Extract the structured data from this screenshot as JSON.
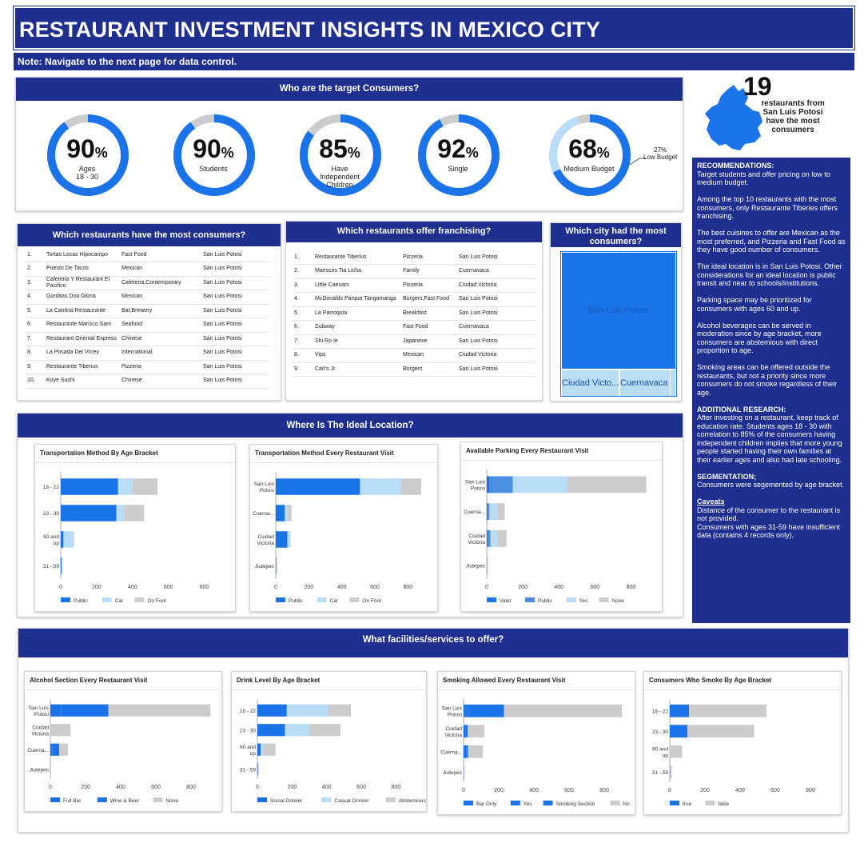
{
  "header": {
    "title": "RESTAURANT INVESTMENT INSIGHTS IN MEXICO CITY",
    "note": "Note: Navigate to  the next page for data control."
  },
  "consumers": {
    "title": "Who are the target Consumers?",
    "donuts": [
      {
        "pct": "90",
        "label1": "Ages",
        "label2": "18 - 30",
        "label3": "",
        "value": 0.9
      },
      {
        "pct": "90",
        "label1": "Students",
        "label2": "",
        "label3": "",
        "value": 0.9
      },
      {
        "pct": "85",
        "label1": "Have",
        "label2": "Independent",
        "label3": "Children",
        "value": 0.85
      },
      {
        "pct": "92",
        "label1": "Single",
        "label2": "",
        "label3": "",
        "value": 0.92
      },
      {
        "pct": "68",
        "label1": "Medium Budget",
        "label2": "",
        "label3": "",
        "value": 0.68,
        "low": 0.27
      }
    ],
    "pct_symbol": "%",
    "low_budget_pct": "27%",
    "low_budget_label": "Low Budget"
  },
  "state_callout": {
    "number": "19",
    "line1": "restaurants from",
    "line2": "San Luis Potosi",
    "line3": "have the most",
    "line4": "consumers"
  },
  "most_consumers": {
    "title": "Which restaurants have the most consumers?",
    "rows": [
      [
        "1.",
        "Tortas Locas Hipocampo",
        "Fast Food",
        "San Luis Potosi"
      ],
      [
        "2.",
        "Puesto De Tacos",
        "Mexican",
        "San Luis Potosi"
      ],
      [
        "3.",
        "Cafeteria Y Restaurant El Pacifico",
        "Cafeteria,Contemporary",
        "San Luis Potosi"
      ],
      [
        "4.",
        "Gorditas Doa Gloria",
        "Mexican",
        "San Luis Potosi"
      ],
      [
        "5.",
        "La Cantina Restaurante",
        "Bar,Brewery",
        "San Luis Potosi"
      ],
      [
        "6.",
        "Restaurante Marisco Sam",
        "Seafood",
        "San Luis Potosi"
      ],
      [
        "7.",
        "Restaurant Oriental Express",
        "Chinese",
        "San Luis Potosi"
      ],
      [
        "8.",
        "La Posada Del Virrey",
        "International",
        "San Luis Potosi"
      ],
      [
        "9.",
        "Restaurante Tiberius",
        "Pizzeria",
        "San Luis Potosi"
      ],
      [
        "10.",
        "Koye Sushi",
        "Chinese",
        "San Luis Potosi"
      ]
    ]
  },
  "franchising": {
    "title": "Which restaurants offer franchising?",
    "rows": [
      [
        "1.",
        "Restaurante Tiberius",
        "Pizzeria",
        "San Luis Potosi"
      ],
      [
        "2.",
        "Mariscos Tia Licha",
        "Family",
        "Cuernavaca"
      ],
      [
        "3.",
        "Little Caesars",
        "Pizzeria",
        "Ciudad Victoria"
      ],
      [
        "4.",
        "McDonalds Parque Tangamanga",
        "Burgers,Fast Food",
        "San Luis Potosi"
      ],
      [
        "5.",
        "La Parroquia",
        "Breakfast",
        "San Luis Potosi"
      ],
      [
        "6.",
        "Subway",
        "Fast Food",
        "Cuernavaca"
      ],
      [
        "7.",
        "Shi Ro Ie",
        "Japanese",
        "San Luis Potosi"
      ],
      [
        "8.",
        "Vips",
        "Mexican",
        "Ciudad Victoria"
      ],
      [
        "9.",
        "Carl's Jr",
        "Burgers",
        "San Luis Potosi"
      ]
    ]
  },
  "city_treemap": {
    "title": "Which city had the most consumers?",
    "cells": [
      "San Luis Potosi",
      "Ciudad Victo...",
      "Cuernavaca ..."
    ]
  },
  "location": {
    "title": "Where Is The Ideal Location?"
  },
  "facilities": {
    "title": "What facilities/services to offer?"
  },
  "recommendations": {
    "h1": "RECOMMENDATIONS:",
    "p1": "Target students and offer pricing on low to medium budget.",
    "p2": "Among the top 10 restaurants with the most consumers, only Restaurante Tiberies offers franchising.",
    "p3": "The best cuisines to offer are Mexican as the most preferred, and Pizzeria and Fast Food as they have good number of consumers.",
    "p4": "The ideal location is in San Luis Potosi. Other considerations for an ideal location is public transit and near to schools/institutions.",
    "p5": "Parking space may be prioritized for consumers with ages 60 and up.",
    "p6": "Alcohol beverages can be served in moderation since by age bracket, more consumers are abstemious with direct proportion to age.",
    "p7": "Smoking areas  can be offered outside the restaurants, but not a priority since more consumers do not smoke regardless of their age.",
    "h2": "ADDITIONAL RESEARCH:",
    "p8": "After investing on a restaurant, keep track of education rate. Students ages 18 - 30 with correlation to 85% of the consumers having independent children implies that more young people started having their own families at their earlier ages and also had late schooling.",
    "h3": "SEGMENTATION;",
    "p9": "Consumers were segemented by age bracket.",
    "h4": "Caveats",
    "p10": "Distance of the consumer to the restaurant is not provided.",
    "p11": "Consumers with ages 31-59 have insufficient data (contains 4 records only)."
  },
  "colors": {
    "navy": "#1f2f8f",
    "blue": "#1a73e8",
    "mid_blue": "#4a90e2",
    "light_blue": "#b9dcf7",
    "grey": "#cccccc"
  },
  "chart_data": [
    {
      "id": "transport_age",
      "type": "bar",
      "title": "Transportation Method By Age Bracket",
      "categories": [
        "18 - 22",
        "23 - 30",
        "60 and up",
        "31 - 59"
      ],
      "series": [
        {
          "name": "Public",
          "values": [
            320,
            310,
            15,
            5
          ]
        },
        {
          "name": "Car",
          "values": [
            80,
            45,
            60,
            2
          ]
        },
        {
          "name": "On Foot",
          "values": [
            140,
            110,
            0,
            0
          ]
        }
      ],
      "xlim": [
        0,
        900
      ],
      "ticks": [
        "0",
        "200",
        "400",
        "600",
        "800"
      ]
    },
    {
      "id": "transport_city",
      "type": "bar",
      "title": "Transportation Method Every Restaurant Visit",
      "categories": [
        "San Luis Potosi",
        "Cuerna...",
        "Ciudad Victoria",
        "Jiutepec"
      ],
      "series": [
        {
          "name": "Public",
          "values": [
            510,
            55,
            70,
            3
          ]
        },
        {
          "name": "Car",
          "values": [
            250,
            20,
            20,
            1
          ]
        },
        {
          "name": "On Foot",
          "values": [
            120,
            20,
            0,
            0
          ]
        }
      ],
      "xlim": [
        0,
        900
      ],
      "ticks": [
        "0",
        "200",
        "400",
        "600",
        "800"
      ]
    },
    {
      "id": "parking_city",
      "type": "bar",
      "title": "Available Parking Every Restaurant Visit",
      "categories": [
        "San Luis Potosi",
        "Cuerna...",
        "Ciudad Victoria",
        "Jiutepec"
      ],
      "series": [
        {
          "name": "Valet",
          "values": [
            15,
            5,
            5,
            1
          ]
        },
        {
          "name": "Public",
          "values": [
            130,
            10,
            15,
            0
          ]
        },
        {
          "name": "Yes",
          "values": [
            300,
            45,
            40,
            1
          ]
        },
        {
          "name": "None",
          "values": [
            440,
            40,
            50,
            2
          ]
        }
      ],
      "xlim": [
        0,
        900
      ],
      "ticks": [
        "0",
        "200",
        "400",
        "600",
        "800"
      ]
    },
    {
      "id": "alcohol_city",
      "type": "bar",
      "title": "Alcohol Section Every Restaurant Visit",
      "categories": [
        "San Luis Potosi",
        "Ciudad Victoria",
        "Cuerna...",
        "Jiutepec"
      ],
      "series": [
        {
          "name": "Full Bar",
          "values": [
            60,
            0,
            10,
            0
          ]
        },
        {
          "name": "Wine & Beer",
          "values": [
            270,
            0,
            40,
            0
          ]
        },
        {
          "name": "None",
          "values": [
            580,
            115,
            50,
            3
          ]
        }
      ],
      "xlim": [
        0,
        900
      ],
      "ticks": [
        "0",
        "200",
        "400",
        "600",
        "800"
      ]
    },
    {
      "id": "drink_age",
      "type": "bar",
      "title": "Drink Level By Age Bracket",
      "categories": [
        "18 - 22",
        "23 - 30",
        "60 and up",
        "31 - 59"
      ],
      "series": [
        {
          "name": "Social Drinker",
          "values": [
            170,
            160,
            20,
            3
          ]
        },
        {
          "name": "Casual Drinker",
          "values": [
            240,
            140,
            15,
            0
          ]
        },
        {
          "name": "Abstemious",
          "values": [
            130,
            180,
            70,
            3
          ]
        }
      ],
      "xlim": [
        0,
        900
      ],
      "ticks": [
        "0",
        "200",
        "400",
        "600",
        "800"
      ]
    },
    {
      "id": "smoking_city",
      "type": "bar",
      "title": "Smoking Allowed Every Restaurant Visit",
      "categories": [
        "San Luis Potosi",
        "Ciudad Victoria",
        "Cuerna...",
        "Jiutepec"
      ],
      "series": [
        {
          "name": "Bar Only",
          "values": [
            10,
            3,
            5,
            0
          ]
        },
        {
          "name": "Yes",
          "values": [
            20,
            10,
            10,
            0
          ]
        },
        {
          "name": "Smoking Section",
          "values": [
            200,
            10,
            10,
            1
          ]
        },
        {
          "name": "No",
          "values": [
            670,
            95,
            85,
            2
          ]
        }
      ],
      "xlim": [
        0,
        900
      ],
      "ticks": [
        "0",
        "200",
        "400",
        "600",
        "800"
      ]
    },
    {
      "id": "smoke_age",
      "type": "bar",
      "title": "Consumers Who Smoke By Age Bracket",
      "categories": [
        "18 - 22",
        "23 - 30",
        "60 and up",
        "31 - 59"
      ],
      "series": [
        {
          "name": "true",
          "values": [
            110,
            100,
            0,
            1
          ]
        },
        {
          "name": "false",
          "values": [
            440,
            380,
            70,
            10
          ]
        }
      ],
      "xlim": [
        0,
        900
      ],
      "ticks": [
        "0",
        "200",
        "400",
        "600",
        "800"
      ]
    }
  ]
}
